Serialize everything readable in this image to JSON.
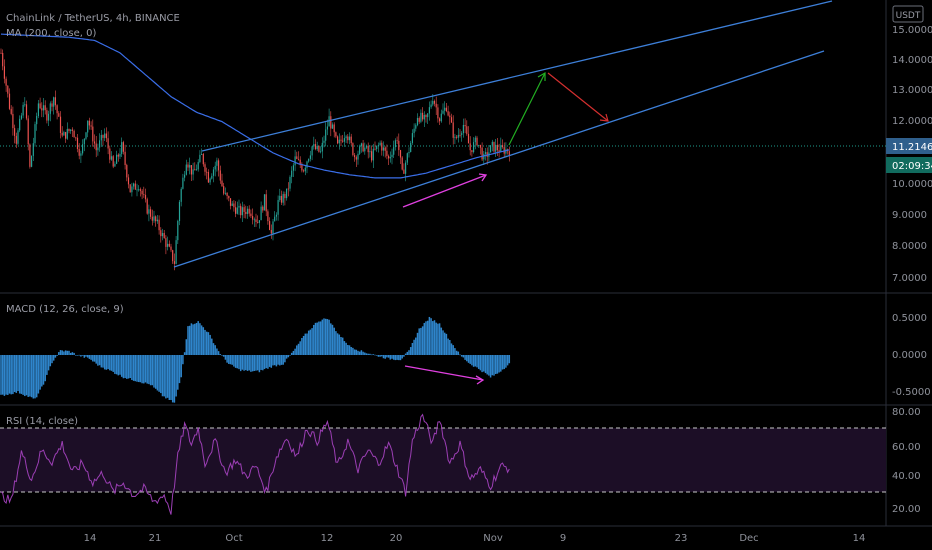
{
  "header": {
    "symbol_line": "ChainLink / TetherUS, 4h, BINANCE",
    "ma_label": "MA (200, close, 0)",
    "currency_button": "USDT"
  },
  "price_panel": {
    "y_ticks": [
      "15.0000",
      "14.0000",
      "13.0000",
      "12.0000",
      "10.0000",
      "9.0000",
      "8.0000",
      "7.0000"
    ],
    "last_price": "11.2146",
    "countdown": "02:09:34"
  },
  "macd_panel": {
    "label": "MACD (12, 26, close, 9)",
    "y_ticks": [
      "0.5000",
      "0.0000",
      "-0.5000"
    ]
  },
  "rsi_panel": {
    "label": "RSI (14, close)",
    "y_ticks": [
      "80.00",
      "60.00",
      "40.00",
      "20.00"
    ]
  },
  "x_axis": {
    "ticks": [
      "14",
      "21",
      "Oct",
      "12",
      "20",
      "Nov",
      "9",
      "23",
      "Dec",
      "14"
    ]
  },
  "colors": {
    "up": "#26a69a",
    "down": "#ef5350",
    "trendline": "#3d7fd8",
    "ma": "#3a6ee8",
    "macd": "#2f86cc",
    "rsi": "#9c3fb5",
    "divergence": "#e040e0",
    "arrow_up": "#22b022",
    "arrow_down": "#d32f2f",
    "price_tag": "#2f5f8c",
    "countdown_tag": "#116b5e"
  },
  "chart_data": [
    {
      "type": "candlestick",
      "title": "ChainLink / TetherUS, 4h, BINANCE",
      "ylim": [
        6.6,
        15.3
      ],
      "price_anchors": [
        [
          0,
          14.3
        ],
        [
          5,
          12.6
        ],
        [
          9,
          11.5
        ],
        [
          14,
          12.8
        ],
        [
          17,
          10.6
        ],
        [
          22,
          12.7
        ],
        [
          27,
          12.3
        ],
        [
          31,
          12.9
        ],
        [
          36,
          11.6
        ],
        [
          42,
          11.9
        ],
        [
          47,
          11.0
        ],
        [
          51,
          12.2
        ],
        [
          56,
          11.2
        ],
        [
          61,
          11.7
        ],
        [
          66,
          10.6
        ],
        [
          71,
          11.3
        ],
        [
          76,
          9.9
        ],
        [
          81,
          10.1
        ],
        [
          86,
          9.3
        ],
        [
          92,
          8.8
        ],
        [
          98,
          8.1
        ],
        [
          102,
          7.6
        ],
        [
          105,
          9.6
        ],
        [
          109,
          10.9
        ],
        [
          113,
          10.4
        ],
        [
          118,
          11.0
        ],
        [
          122,
          10.3
        ],
        [
          127,
          10.8
        ],
        [
          131,
          9.8
        ],
        [
          136,
          9.4
        ],
        [
          141,
          9.2
        ],
        [
          146,
          9.3
        ],
        [
          151,
          8.9
        ],
        [
          155,
          9.6
        ],
        [
          159,
          8.5
        ],
        [
          163,
          9.5
        ],
        [
          168,
          9.8
        ],
        [
          173,
          10.9
        ],
        [
          178,
          10.6
        ],
        [
          183,
          11.3
        ],
        [
          188,
          11.1
        ],
        [
          193,
          12.2
        ],
        [
          198,
          11.3
        ],
        [
          203,
          11.8
        ],
        [
          208,
          11.0
        ],
        [
          213,
          11.3
        ],
        [
          218,
          11.0
        ],
        [
          223,
          11.4
        ],
        [
          228,
          10.9
        ],
        [
          233,
          11.6
        ],
        [
          236,
          10.4
        ],
        [
          240,
          11.2
        ],
        [
          245,
          12.3
        ],
        [
          250,
          12.1
        ],
        [
          254,
          12.9
        ],
        [
          258,
          12.2
        ],
        [
          262,
          12.6
        ],
        [
          267,
          11.5
        ],
        [
          272,
          12.0
        ],
        [
          276,
          11.2
        ],
        [
          280,
          11.5
        ],
        [
          284,
          10.9
        ],
        [
          289,
          11.3
        ],
        [
          294,
          11.2
        ],
        [
          299,
          11.2
        ]
      ],
      "ma200_anchors": [
        [
          0,
          14.9
        ],
        [
          20,
          14.85
        ],
        [
          40,
          14.8
        ],
        [
          55,
          14.7
        ],
        [
          70,
          14.3
        ],
        [
          85,
          13.6
        ],
        [
          100,
          12.9
        ],
        [
          115,
          12.4
        ],
        [
          130,
          12.1
        ],
        [
          145,
          11.6
        ],
        [
          160,
          11.1
        ],
        [
          175,
          10.75
        ],
        [
          190,
          10.55
        ],
        [
          205,
          10.4
        ],
        [
          220,
          10.3
        ],
        [
          235,
          10.3
        ],
        [
          250,
          10.45
        ],
        [
          265,
          10.7
        ],
        [
          280,
          10.95
        ],
        [
          299,
          11.2
        ]
      ],
      "last_price": 11.2146,
      "trendlines": [
        {
          "from": [
            102,
            7.3
          ],
          "to": [
            496,
            11.05
          ],
          "unit": "bar/price"
        },
        {
          "from": [
            118,
            11.0
          ],
          "to": [
            496,
            14.7
          ],
          "unit": "bar/price"
        }
      ],
      "projection_arrows": [
        {
          "color": "green",
          "from_price": 11.2,
          "to_price": 13.6
        },
        {
          "color": "red",
          "from_price": 13.6,
          "to_price": 11.9
        }
      ]
    },
    {
      "type": "bar",
      "title": "MACD (12, 26, close, 9)",
      "ylim": [
        -0.75,
        0.7
      ],
      "histogram_anchors": [
        [
          0,
          -0.55
        ],
        [
          10,
          -0.5
        ],
        [
          20,
          -0.6
        ],
        [
          25,
          -0.4
        ],
        [
          30,
          -0.1
        ],
        [
          35,
          0.06
        ],
        [
          40,
          0.05
        ],
        [
          45,
          0.0
        ],
        [
          52,
          -0.05
        ],
        [
          58,
          -0.15
        ],
        [
          65,
          -0.22
        ],
        [
          72,
          -0.3
        ],
        [
          80,
          -0.35
        ],
        [
          88,
          -0.4
        ],
        [
          95,
          -0.55
        ],
        [
          102,
          -0.65
        ],
        [
          106,
          -0.3
        ],
        [
          110,
          0.4
        ],
        [
          116,
          0.45
        ],
        [
          122,
          0.3
        ],
        [
          128,
          0.05
        ],
        [
          134,
          -0.12
        ],
        [
          140,
          -0.2
        ],
        [
          146,
          -0.22
        ],
        [
          152,
          -0.22
        ],
        [
          160,
          -0.15
        ],
        [
          166,
          -0.12
        ],
        [
          172,
          0.05
        ],
        [
          178,
          0.25
        ],
        [
          186,
          0.45
        ],
        [
          192,
          0.5
        ],
        [
          198,
          0.3
        ],
        [
          205,
          0.12
        ],
        [
          212,
          0.05
        ],
        [
          220,
          0.0
        ],
        [
          228,
          -0.05
        ],
        [
          235,
          -0.06
        ],
        [
          240,
          0.05
        ],
        [
          246,
          0.35
        ],
        [
          252,
          0.5
        ],
        [
          258,
          0.42
        ],
        [
          264,
          0.2
        ],
        [
          270,
          0.0
        ],
        [
          276,
          -0.12
        ],
        [
          282,
          -0.2
        ],
        [
          288,
          -0.3
        ],
        [
          292,
          -0.25
        ],
        [
          299,
          -0.12
        ]
      ]
    },
    {
      "type": "line",
      "title": "RSI (14, close)",
      "ylim": [
        10,
        82
      ],
      "overbought": 70,
      "oversold": 30,
      "rsi_anchors": [
        [
          0,
          28
        ],
        [
          6,
          24
        ],
        [
          12,
          55
        ],
        [
          18,
          38
        ],
        [
          24,
          56
        ],
        [
          30,
          49
        ],
        [
          36,
          60
        ],
        [
          42,
          42
        ],
        [
          48,
          48
        ],
        [
          54,
          36
        ],
        [
          60,
          42
        ],
        [
          66,
          30
        ],
        [
          72,
          36
        ],
        [
          78,
          28
        ],
        [
          84,
          32
        ],
        [
          90,
          24
        ],
        [
          96,
          28
        ],
        [
          100,
          18
        ],
        [
          104,
          52
        ],
        [
          108,
          72
        ],
        [
          112,
          60
        ],
        [
          116,
          70
        ],
        [
          120,
          48
        ],
        [
          126,
          62
        ],
        [
          132,
          42
        ],
        [
          138,
          50
        ],
        [
          144,
          40
        ],
        [
          150,
          46
        ],
        [
          156,
          30
        ],
        [
          162,
          52
        ],
        [
          168,
          64
        ],
        [
          174,
          52
        ],
        [
          180,
          70
        ],
        [
          186,
          62
        ],
        [
          192,
          74
        ],
        [
          198,
          46
        ],
        [
          204,
          62
        ],
        [
          210,
          44
        ],
        [
          216,
          56
        ],
        [
          222,
          48
        ],
        [
          228,
          60
        ],
        [
          234,
          42
        ],
        [
          238,
          30
        ],
        [
          242,
          62
        ],
        [
          248,
          78
        ],
        [
          254,
          60
        ],
        [
          258,
          76
        ],
        [
          264,
          48
        ],
        [
          270,
          60
        ],
        [
          276,
          38
        ],
        [
          282,
          44
        ],
        [
          288,
          34
        ],
        [
          294,
          46
        ],
        [
          299,
          45
        ]
      ]
    }
  ]
}
